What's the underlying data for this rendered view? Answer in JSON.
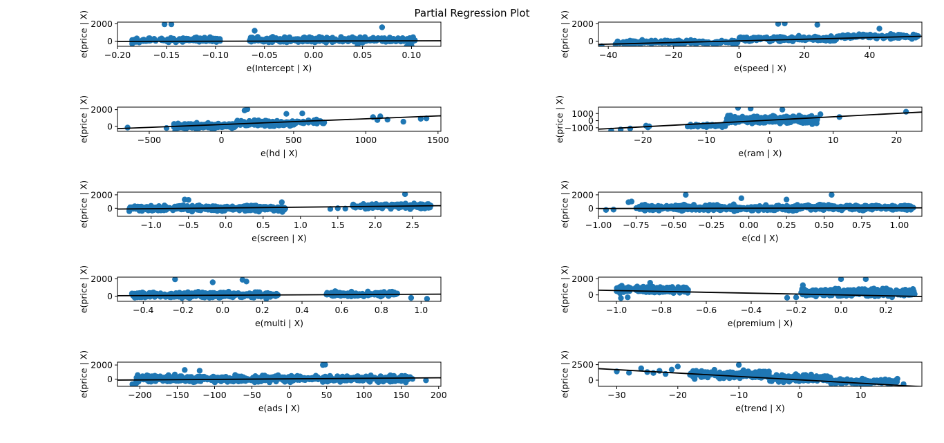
{
  "title": "Partial Regression Plot",
  "colors": {
    "points": "#1f77b4",
    "line": "#000000"
  },
  "chart_data": [
    {
      "type": "scatter",
      "xlabel": "e(Intercept | X)",
      "ylabel": "e(price | X)",
      "xlim": [
        -0.2,
        0.13
      ],
      "ylim": [
        -600,
        2200
      ],
      "xticks": [
        -0.2,
        -0.15,
        -0.1,
        -0.05,
        0.0,
        0.05,
        0.1
      ],
      "xtick_labels": [
        "−0.20",
        "−0.15",
        "−0.10",
        "−0.05",
        "0.00",
        "0.05",
        "0.10"
      ],
      "yticks": [
        0,
        2000
      ],
      "ytick_labels": [
        "0",
        "2000"
      ],
      "fit_line": [
        [
          -0.2,
          -30
        ],
        [
          0.13,
          40
        ]
      ],
      "clusters": [
        {
          "x": [
            -0.185,
            -0.095
          ],
          "ymid": 150,
          "spread": 350,
          "n": 130
        },
        {
          "x": [
            -0.065,
            0.105
          ],
          "ymid": 150,
          "spread": 400,
          "n": 260
        }
      ],
      "points": [
        [
          -0.152,
          1950
        ],
        [
          -0.145,
          1950
        ],
        [
          -0.06,
          1200
        ],
        [
          0.07,
          1600
        ],
        [
          0.095,
          -650
        ],
        [
          0.1,
          -550
        ],
        [
          -0.185,
          -300
        ],
        [
          0.045,
          -500
        ]
      ]
    },
    {
      "type": "scatter",
      "xlabel": "e(speed | X)",
      "ylabel": "e(price | X)",
      "xlim": [
        -43,
        56
      ],
      "ylim": [
        -600,
        2200
      ],
      "xticks": [
        -40,
        -20,
        0,
        20,
        40
      ],
      "xtick_labels": [
        "−40",
        "−20",
        "0",
        "20",
        "40"
      ],
      "yticks": [
        0,
        2000
      ],
      "ytick_labels": [
        "0",
        "2000"
      ],
      "fit_line": [
        [
          -43,
          -380
        ],
        [
          56,
          560
        ]
      ],
      "clusters": [
        {
          "x": [
            -38,
            0
          ],
          "ymid": -150,
          "spread": 350,
          "n": 150
        },
        {
          "x": [
            0,
            30
          ],
          "ymid": 250,
          "spread": 400,
          "n": 160
        },
        {
          "x": [
            30,
            55
          ],
          "ymid": 550,
          "spread": 350,
          "n": 100
        }
      ],
      "points": [
        [
          12,
          2000
        ],
        [
          14,
          2050
        ],
        [
          -42,
          -600
        ],
        [
          24,
          1900
        ],
        [
          43,
          1450
        ],
        [
          -35,
          -550
        ]
      ]
    },
    {
      "type": "scatter",
      "xlabel": "e(hd | X)",
      "ylabel": "e(price | X)",
      "xlim": [
        -720,
        1520
      ],
      "ylim": [
        -600,
        2300
      ],
      "xticks": [
        -500,
        0,
        500,
        1000,
        1500
      ],
      "xtick_labels": [
        "−500",
        "0",
        "500",
        "1000",
        "1500"
      ],
      "yticks": [
        0,
        2000
      ],
      "ytick_labels": [
        "0",
        "2000"
      ],
      "fit_line": [
        [
          -720,
          -280
        ],
        [
          1520,
          1260
        ]
      ],
      "clusters": [
        {
          "x": [
            -330,
            100
          ],
          "ymid": 50,
          "spread": 420,
          "n": 200
        },
        {
          "x": [
            100,
            520
          ],
          "ymid": 350,
          "spread": 450,
          "n": 160
        },
        {
          "x": [
            520,
            760
          ],
          "ymid": 550,
          "spread": 350,
          "n": 25
        }
      ],
      "points": [
        [
          -650,
          -150
        ],
        [
          -380,
          -200
        ],
        [
          160,
          1900
        ],
        [
          180,
          2050
        ],
        [
          450,
          1500
        ],
        [
          560,
          1550
        ],
        [
          1050,
          1100
        ],
        [
          1080,
          750
        ],
        [
          1100,
          1200
        ],
        [
          1150,
          800
        ],
        [
          1260,
          550
        ],
        [
          1380,
          900
        ],
        [
          1420,
          950
        ],
        [
          -320,
          -500
        ]
      ]
    },
    {
      "type": "scatter",
      "xlabel": "e(ram | X)",
      "ylabel": "e(price | X)",
      "xlim": [
        -27,
        24
      ],
      "ylim": [
        -1500,
        1900
      ],
      "xticks": [
        -20,
        -10,
        0,
        10,
        20
      ],
      "xtick_labels": [
        "−20",
        "−10",
        "0",
        "10",
        "20"
      ],
      "yticks": [
        -1000,
        0,
        1000
      ],
      "ytick_labels": [
        "−1000",
        "0",
        "1000"
      ],
      "fit_line": [
        [
          -27,
          -1200
        ],
        [
          24,
          1200
        ]
      ],
      "clusters": [
        {
          "x": [
            -13,
            -7
          ],
          "ymid": -700,
          "spread": 320,
          "n": 40
        },
        {
          "x": [
            -7,
            7.5
          ],
          "ymid": 150,
          "spread": 700,
          "n": 300
        }
      ],
      "points": [
        [
          -25,
          -1400
        ],
        [
          -23.5,
          -1250
        ],
        [
          -22,
          -1100
        ],
        [
          -19.5,
          -700
        ],
        [
          -19,
          -800
        ],
        [
          -19.2,
          -950
        ],
        [
          -5,
          1800
        ],
        [
          -3,
          1700
        ],
        [
          8,
          900
        ],
        [
          11,
          500
        ],
        [
          21.5,
          1250
        ],
        [
          2,
          1550
        ]
      ]
    },
    {
      "type": "scatter",
      "xlabel": "e(screen | X)",
      "ylabel": "e(price | X)",
      "xlim": [
        -1.45,
        2.88
      ],
      "ylim": [
        -1200,
        2400
      ],
      "xticks": [
        -1.0,
        -0.5,
        0.0,
        0.5,
        1.0,
        1.5,
        2.0,
        2.5
      ],
      "xtick_labels": [
        "−1.0",
        "−0.5",
        "0.0",
        "0.5",
        "1.0",
        "1.5",
        "2.0",
        "2.5"
      ],
      "yticks": [
        0,
        2000
      ],
      "ytick_labels": [
        "0",
        "2000"
      ],
      "fit_line": [
        [
          -1.45,
          -120
        ],
        [
          2.88,
          380
        ]
      ],
      "clusters": [
        {
          "x": [
            -1.3,
            0.8
          ],
          "ymid": 0,
          "spread": 600,
          "n": 330
        },
        {
          "x": [
            1.7,
            2.75
          ],
          "ymid": 300,
          "spread": 550,
          "n": 120
        }
      ],
      "points": [
        [
          2.4,
          2100
        ],
        [
          1.4,
          -100
        ],
        [
          1.5,
          0
        ],
        [
          1.6,
          -50
        ],
        [
          -0.55,
          1300
        ],
        [
          -0.5,
          1250
        ],
        [
          0.75,
          900
        ]
      ]
    },
    {
      "type": "scatter",
      "xlabel": "e(cd | X)",
      "ylabel": "e(price | X)",
      "xlim": [
        -1.0,
        1.15
      ],
      "ylim": [
        -1200,
        2400
      ],
      "xticks": [
        -1.0,
        -0.75,
        -0.5,
        -0.25,
        0.0,
        0.25,
        0.5,
        0.75,
        1.0
      ],
      "xtick_labels": [
        "−1.00",
        "−0.75",
        "−0.50",
        "−0.25",
        "0.00",
        "0.25",
        "0.50",
        "0.75",
        "1.00"
      ],
      "yticks": [
        0,
        2000
      ],
      "ytick_labels": [
        "0",
        "2000"
      ],
      "fit_line": [
        [
          -1.0,
          -40
        ],
        [
          1.15,
          60
        ]
      ],
      "clusters": [
        {
          "x": [
            -0.75,
            0.3
          ],
          "ymid": 50,
          "spread": 600,
          "n": 280
        },
        {
          "x": [
            0.3,
            1.1
          ],
          "ymid": 100,
          "spread": 550,
          "n": 200
        }
      ],
      "points": [
        [
          -0.9,
          -200
        ],
        [
          -0.95,
          -250
        ],
        [
          -0.8,
          900
        ],
        [
          -0.78,
          1000
        ],
        [
          -0.42,
          2000
        ],
        [
          0.55,
          2000
        ],
        [
          -0.05,
          1500
        ],
        [
          0.25,
          1300
        ]
      ]
    },
    {
      "type": "scatter",
      "xlabel": "e(multi | X)",
      "ylabel": "e(price | X)",
      "xlim": [
        -0.53,
        1.1
      ],
      "ylim": [
        -600,
        2200
      ],
      "xticks": [
        -0.4,
        -0.2,
        0.0,
        0.2,
        0.4,
        0.6,
        0.8,
        1.0
      ],
      "xtick_labels": [
        "−0.4",
        "−0.2",
        "0.0",
        "0.2",
        "0.4",
        "0.6",
        "0.8",
        "1.0"
      ],
      "yticks": [
        0,
        2000
      ],
      "ytick_labels": [
        "0",
        "2000"
      ],
      "fit_line": [
        [
          -0.53,
          50
        ],
        [
          1.1,
          230
        ]
      ],
      "clusters": [
        {
          "x": [
            -0.46,
            0.28
          ],
          "ymid": 150,
          "spread": 450,
          "n": 330
        },
        {
          "x": [
            0.52,
            0.88
          ],
          "ymid": 250,
          "spread": 400,
          "n": 110
        }
      ],
      "points": [
        [
          -0.24,
          1950
        ],
        [
          0.1,
          1900
        ],
        [
          0.12,
          1700
        ],
        [
          -0.05,
          1600
        ],
        [
          0.95,
          -200
        ],
        [
          1.03,
          -300
        ],
        [
          0.22,
          -300
        ]
      ]
    },
    {
      "type": "scatter",
      "xlabel": "e(premium | X)",
      "ylabel": "e(price | X)",
      "xlim": [
        -1.08,
        0.36
      ],
      "ylim": [
        -800,
        2200
      ],
      "xticks": [
        -1.0,
        -0.8,
        -0.6,
        -0.4,
        -0.2,
        0.0,
        0.2
      ],
      "xtick_labels": [
        "−1.0",
        "−0.8",
        "−0.6",
        "−0.4",
        "−0.2",
        "0.0",
        "0.2"
      ],
      "yticks": [
        0,
        2000
      ],
      "ytick_labels": [
        "0",
        "2000"
      ],
      "fit_line": [
        [
          -1.08,
          580
        ],
        [
          0.36,
          -200
        ]
      ],
      "clusters": [
        {
          "x": [
            -1.0,
            -0.68
          ],
          "ymid": 650,
          "spread": 600,
          "n": 170
        },
        {
          "x": [
            -0.18,
            0.33
          ],
          "ymid": 300,
          "spread": 650,
          "n": 270
        }
      ],
      "points": [
        [
          -0.98,
          -400
        ],
        [
          -0.95,
          -300
        ],
        [
          -0.24,
          -350
        ],
        [
          -0.2,
          -300
        ],
        [
          0.0,
          1950
        ],
        [
          0.11,
          1950
        ],
        [
          -0.17,
          1200
        ],
        [
          -0.85,
          1500
        ]
      ]
    },
    {
      "type": "scatter",
      "xlabel": "e(ads | X)",
      "ylabel": "e(price | X)",
      "xlim": [
        -230,
        203
      ],
      "ylim": [
        -1000,
        2400
      ],
      "xticks": [
        -200,
        -150,
        -100,
        -50,
        0,
        50,
        100,
        150,
        200
      ],
      "xtick_labels": [
        "−200",
        "−150",
        "−100",
        "−50",
        "0",
        "50",
        "100",
        "150",
        "200"
      ],
      "yticks": [
        0,
        2000
      ],
      "ytick_labels": [
        "0",
        "2000"
      ],
      "fit_line": [
        [
          -230,
          -120
        ],
        [
          203,
          200
        ]
      ],
      "clusters": [
        {
          "x": [
            -205,
            165
          ],
          "ymid": 50,
          "spread": 650,
          "n": 480
        }
      ],
      "points": [
        [
          -210,
          -700
        ],
        [
          -205,
          -600
        ],
        [
          45,
          2000
        ],
        [
          48,
          2050
        ],
        [
          160,
          100
        ],
        [
          183,
          -150
        ],
        [
          -140,
          1300
        ],
        [
          -120,
          1200
        ]
      ]
    },
    {
      "type": "scatter",
      "xlabel": "e(trend | X)",
      "ylabel": "e(price | X)",
      "xlim": [
        -33,
        20
      ],
      "ylim": [
        -1000,
        2900
      ],
      "xticks": [
        -30,
        -20,
        -10,
        0,
        10
      ],
      "xtick_labels": [
        "−30",
        "−20",
        "−10",
        "0",
        "10"
      ],
      "yticks": [
        0,
        2500
      ],
      "ytick_labels": [
        "0",
        "2500"
      ],
      "fit_line": [
        [
          -33,
          1850
        ],
        [
          20,
          -1050
        ]
      ],
      "clusters": [
        {
          "x": [
            -18,
            -5
          ],
          "ymid": 900,
          "spread": 850,
          "n": 170
        },
        {
          "x": [
            -5,
            5
          ],
          "ymid": 300,
          "spread": 750,
          "n": 150
        },
        {
          "x": [
            5,
            16
          ],
          "ymid": -200,
          "spread": 650,
          "n": 100
        }
      ],
      "points": [
        [
          -30,
          1400
        ],
        [
          -28,
          1200
        ],
        [
          -26,
          1900
        ],
        [
          -25,
          1300
        ],
        [
          -24,
          1150
        ],
        [
          -23,
          1500
        ],
        [
          -22,
          1000
        ],
        [
          -21,
          1700
        ],
        [
          -20,
          2200
        ],
        [
          -10,
          2450
        ],
        [
          17,
          -650
        ],
        [
          15,
          -500
        ]
      ]
    }
  ]
}
